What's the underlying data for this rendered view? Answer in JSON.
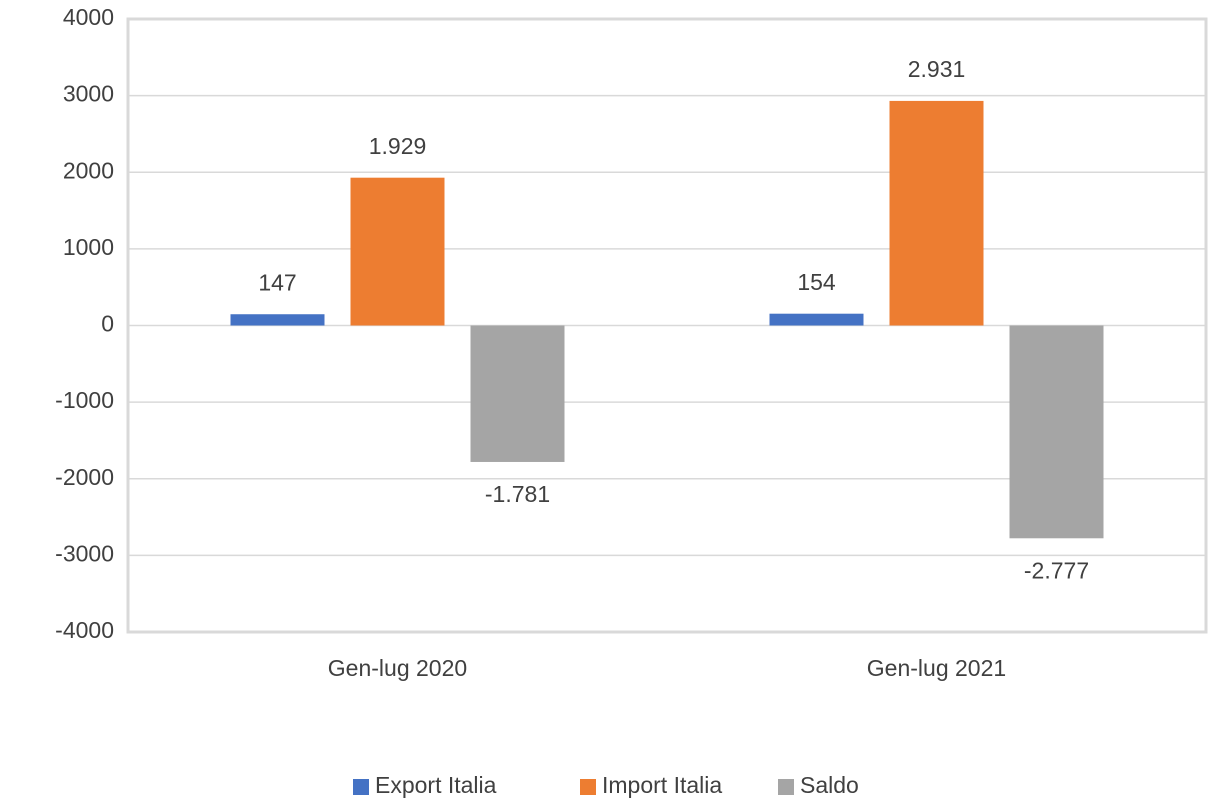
{
  "chart_data": {
    "type": "bar",
    "categories": [
      "Gen-lug 2020",
      "Gen-lug 2021"
    ],
    "series": [
      {
        "name": "Export Italia",
        "color": "#4472c4",
        "values": [
          147,
          154
        ],
        "value_labels": [
          "147",
          "154"
        ]
      },
      {
        "name": "Import Italia",
        "color": "#ed7d31",
        "values": [
          1929,
          2931
        ],
        "value_labels": [
          "1.929",
          "2.931"
        ]
      },
      {
        "name": "Saldo",
        "color": "#a5a5a5",
        "values": [
          -1781,
          -2777
        ],
        "value_labels": [
          "-1.781",
          "-2.777"
        ]
      }
    ],
    "ylim": [
      -4000,
      4000
    ],
    "yticks": [
      -4000,
      -3000,
      -2000,
      -1000,
      0,
      1000,
      2000,
      3000,
      4000
    ],
    "grid": true,
    "legend": "bottom"
  }
}
